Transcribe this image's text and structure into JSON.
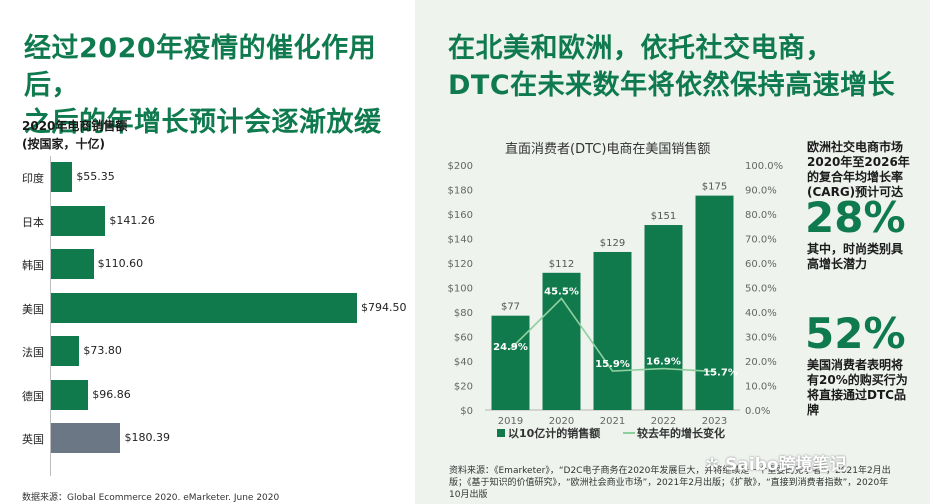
{
  "left": {
    "headline_line1": "经过2020年疫情的催化作用后，",
    "headline_line2": "之后的年增长预计会逐渐放缓",
    "subtitle_line1": "2020年电商销售额",
    "subtitle_line2": "(按国家，十亿)",
    "source": "数据来源：Global Ecommerce 2020. eMarketer. June 2020"
  },
  "right": {
    "headline_line1": "在北美和欧洲，依托社交电商，",
    "headline_line2": "DTC在未来数年将依然保持高速增长",
    "stat1_text_lines": [
      "欧洲社交电商市场",
      "2020年至2026年",
      "的复合年均增长率",
      "(CARG)预计可达"
    ],
    "stat1_value": "28%",
    "stat1_sub_lines": [
      "其中，时尚类别具",
      "高增长潜力"
    ],
    "stat2_value": "52%",
    "stat2_text_lines": [
      "美国消费者表明将",
      "有20%的购买行为",
      "将直接通过DTC品",
      "牌"
    ],
    "source": "资料来源：《Emarketer》，“D2C电子商务在2020年发展巨大，并将继续是一个重要的竞争者”，2021年2月出版；《基于知识的价值研究》，“欧洲社会商业市场”，2021年2月出版；《扩散》，“直接到消费者指数”，2020年10月出版",
    "watermark": "Saibo跨境笔记"
  },
  "colors": {
    "primary": "#117a4d",
    "highlight": "#6b7785",
    "line": "#8fcf9f"
  },
  "chart_data": [
    {
      "type": "bar",
      "orientation": "horizontal",
      "title": "2020年电商销售额",
      "subtitle": "(按国家，十亿)",
      "categories": [
        "印度",
        "日本",
        "韩国",
        "美国",
        "法国",
        "德国",
        "英国"
      ],
      "values": [
        55.35,
        141.26,
        110.6,
        794.5,
        73.8,
        96.86,
        180.39
      ],
      "labels": [
        "$55.35",
        "$141.26",
        "$110.60",
        "$794.50",
        "$73.80",
        "$96.86",
        "$180.39"
      ],
      "highlight_category": "英国"
    },
    {
      "type": "bar",
      "title": "直面消费者(DTC)电商在美国销售额",
      "categories": [
        "2019",
        "2020",
        "2021",
        "2022",
        "2023"
      ],
      "series": [
        {
          "name": "以10亿计的销售额",
          "type": "bar",
          "axis": "left",
          "values": [
            77,
            112,
            129,
            151,
            175
          ],
          "labels": [
            "$77",
            "$112",
            "$129",
            "$151",
            "$175"
          ]
        },
        {
          "name": "较去年的增长变化",
          "type": "line",
          "axis": "right",
          "values": [
            24.9,
            45.5,
            15.9,
            16.9,
            15.7
          ],
          "labels": [
            "24.9%",
            "45.5%",
            "15.9%",
            "16.9%",
            "15.7%"
          ]
        }
      ],
      "ylim": [
        0,
        200
      ],
      "ylim_right": [
        0,
        100
      ],
      "yticks": [
        "$0",
        "$20",
        "$40",
        "$60",
        "$80",
        "$100",
        "$120",
        "$140",
        "$160",
        "$180",
        "$200"
      ],
      "yticks_right": [
        "0.0%",
        "10.0%",
        "20.0%",
        "30.0%",
        "40.0%",
        "50.0%",
        "60.0%",
        "70.0%",
        "80.0%",
        "90.0%",
        "100.0%"
      ],
      "legend": "bottom"
    }
  ]
}
